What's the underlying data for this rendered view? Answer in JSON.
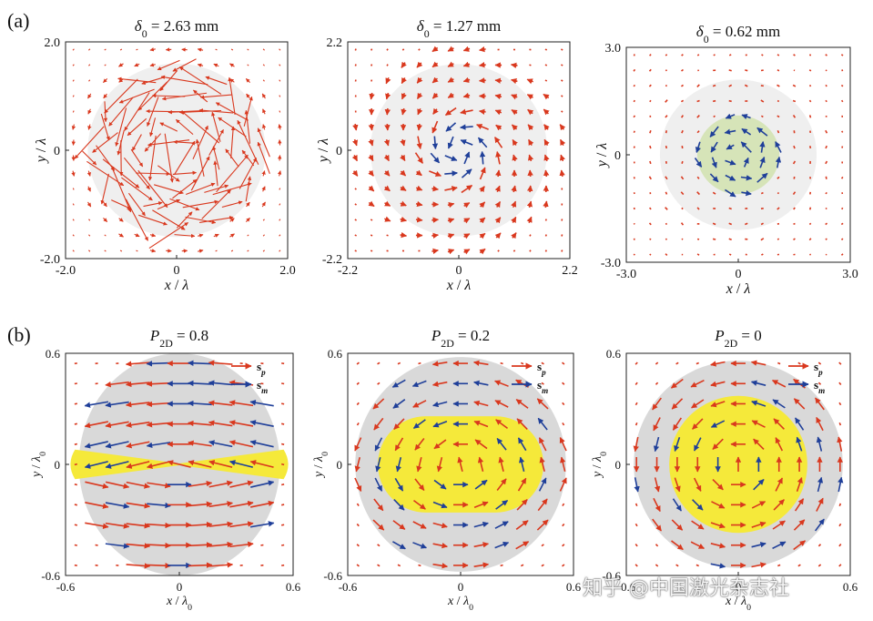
{
  "figure": {
    "row_a_label": "(a)",
    "row_b_label": "(b)",
    "watermark": "知乎 @中国激光杂志社"
  },
  "chart_data": [
    {
      "type": "quiver",
      "title_symbol": "δ",
      "title_subscript": "0",
      "title_value": " = 2.63 mm",
      "xlabel_var": "x",
      "ylabel_var": "y",
      "label_unit": "λ",
      "xlim": [
        -2.0,
        2.0
      ],
      "ylim": [
        -2.0,
        2.0
      ],
      "xticks": [
        "-2.0",
        "0",
        "2.0"
      ],
      "yticks": [
        "-2.0",
        "0",
        "2.0"
      ],
      "xtick_values": [
        -2.0,
        0,
        2.0
      ],
      "ytick_values": [
        -2.0,
        0,
        2.0
      ],
      "background_disk_radius": 1.6,
      "field": "disordered vortex, large red arrows inside disk",
      "series": [
        {
          "name": "",
          "color": "#d9381e"
        },
        {
          "name": "",
          "color": "#1f3f99"
        }
      ]
    },
    {
      "type": "quiver",
      "title_symbol": "δ",
      "title_subscript": "0",
      "title_value": " = 1.27 mm",
      "xlabel_var": "x",
      "ylabel_var": "y",
      "label_unit": "λ",
      "xlim": [
        -2.2,
        2.2
      ],
      "ylim": [
        -2.2,
        2.2
      ],
      "xticks": [
        "-2.2",
        "0",
        "2.2"
      ],
      "yticks": [
        "-2.2",
        "0",
        "2.2"
      ],
      "xtick_values": [
        -2.2,
        0,
        2.2
      ],
      "ytick_values": [
        -2.2,
        0,
        2.2
      ],
      "background_disk_radius": 1.75,
      "field": "spiral vortex",
      "series": [
        {
          "name": "",
          "color": "#d9381e"
        },
        {
          "name": "",
          "color": "#1f3f99"
        }
      ]
    },
    {
      "type": "quiver",
      "title_symbol": "δ",
      "title_subscript": "0",
      "title_value": " = 0.62 mm",
      "xlabel_var": "x",
      "ylabel_var": "y",
      "label_unit": "λ",
      "xlim": [
        -3.0,
        3.0
      ],
      "ylim": [
        -3.0,
        3.0
      ],
      "xticks": [
        "-3.0",
        "0",
        "3.0"
      ],
      "yticks": [
        "-3.0",
        "0",
        "3.0"
      ],
      "xtick_values": [
        -3.0,
        0,
        3.0
      ],
      "ytick_values": [
        -3.0,
        0,
        3.0
      ],
      "background_disk_radius": 2.1,
      "inner_disk_radius": 1.1,
      "inner_disk_color": "#d6e4b8",
      "field": "weak vortex with small blue arrows inside green disk",
      "series": [
        {
          "name": "",
          "color": "#d9381e"
        },
        {
          "name": "",
          "color": "#1f3f99"
        }
      ]
    },
    {
      "type": "quiver",
      "title_symbol": "P",
      "title_subscript": "2D",
      "title_value": " = 0.8",
      "xlabel_var": "x",
      "ylabel_var": "y",
      "label_unit": "λ",
      "label_unit_sub": "0",
      "xlim": [
        -0.6,
        0.6
      ],
      "ylim": [
        -0.6,
        0.6
      ],
      "xticks": [
        "-0.6",
        "0",
        "0.6"
      ],
      "yticks": [
        "-0.6",
        "0",
        "0.6"
      ],
      "xtick_values": [
        -0.6,
        0,
        0.6
      ],
      "ytick_values": [
        -0.6,
        0,
        0.6
      ],
      "background_ellipse": {
        "rx": 0.53,
        "ry": 0.6,
        "color": "#d9d9d9"
      },
      "yellow_region": "bowtie",
      "yellow_color": "#f5e93a",
      "p2d": 0.8,
      "legend": [
        {
          "label": "s",
          "sub": "p",
          "color": "#d9381e"
        },
        {
          "label": "s",
          "sub": "m",
          "color": "#1f3f99"
        }
      ]
    },
    {
      "type": "quiver",
      "title_symbol": "P",
      "title_subscript": "2D",
      "title_value": " = 0.2",
      "xlabel_var": "x",
      "ylabel_var": "y",
      "label_unit": "λ",
      "label_unit_sub": "0",
      "xlim": [
        -0.6,
        0.6
      ],
      "ylim": [
        -0.6,
        0.6
      ],
      "xticks": [
        "-0.6",
        "0",
        "0.6"
      ],
      "yticks": [
        "-0.6",
        "0",
        "0.6"
      ],
      "xtick_values": [
        -0.6,
        0,
        0.6
      ],
      "ytick_values": [
        -0.6,
        0,
        0.6
      ],
      "background_ellipse": {
        "rx": 0.56,
        "ry": 0.58,
        "color": "#d9d9d9"
      },
      "yellow_region": "stadium",
      "yellow_color": "#f5e93a",
      "p2d": 0.2,
      "legend": [
        {
          "label": "s",
          "sub": "p",
          "color": "#d9381e"
        },
        {
          "label": "s",
          "sub": "m",
          "color": "#1f3f99"
        }
      ]
    },
    {
      "type": "quiver",
      "title_symbol": "P",
      "title_subscript": "2D",
      "title_value": " = 0",
      "xlabel_var": "x",
      "ylabel_var": "y",
      "label_unit": "λ",
      "label_unit_sub": "0",
      "xlim": [
        -0.6,
        0.6
      ],
      "ylim": [
        -0.6,
        0.6
      ],
      "xticks": [
        "-0.6",
        "0",
        "0.6"
      ],
      "yticks": [
        "-0.6",
        "0",
        "0.6"
      ],
      "xtick_values": [
        -0.6,
        0,
        0.6
      ],
      "ytick_values": [
        -0.6,
        0,
        0.6
      ],
      "background_ellipse": {
        "rx": 0.56,
        "ry": 0.56,
        "color": "#d9d9d9"
      },
      "yellow_region": "circle",
      "yellow_color": "#f5e93a",
      "p2d": 0,
      "legend": [
        {
          "label": "s",
          "sub": "p",
          "color": "#d9381e"
        },
        {
          "label": "s",
          "sub": "m",
          "color": "#1f3f99"
        }
      ]
    }
  ]
}
